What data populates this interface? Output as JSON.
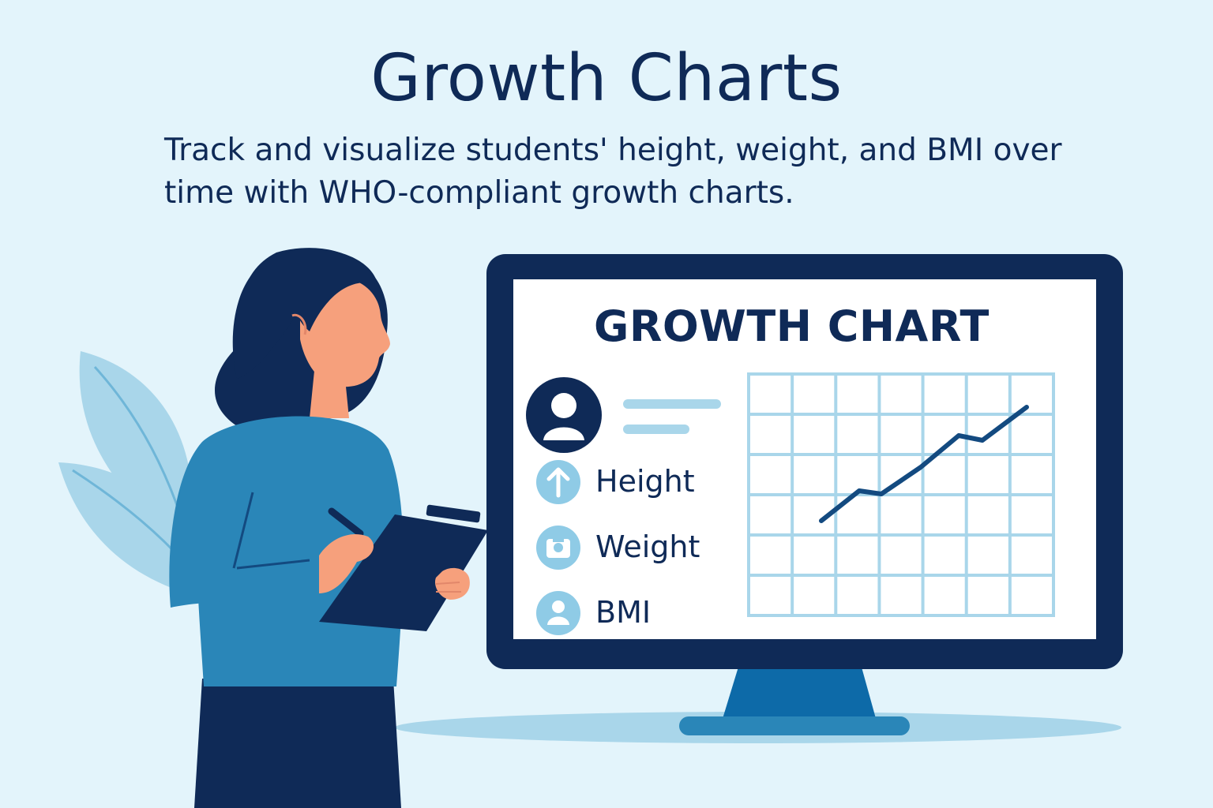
{
  "header": {
    "title": "Growth Charts",
    "subtitle": "Track and visualize students' height, weight, and BMI over time with WHO-compliant growth charts."
  },
  "monitor": {
    "screen_title": "GROWTH CHART",
    "metrics": [
      {
        "label": "Height",
        "icon": "arrow-up-icon"
      },
      {
        "label": "Weight",
        "icon": "scale-icon"
      },
      {
        "label": "BMI",
        "icon": "person-icon"
      }
    ]
  },
  "colors": {
    "background": "#e3f4fb",
    "navy": "#0f2a57",
    "blue": "#2a86b8",
    "light_blue": "#a9d6ea"
  }
}
